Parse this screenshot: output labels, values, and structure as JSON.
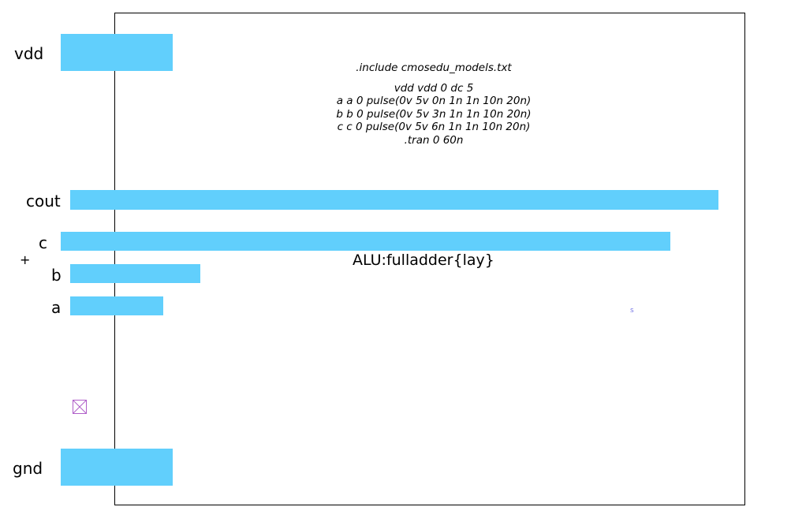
{
  "layout": {
    "cell_name": "ALU:fulladder{lay}",
    "spice": {
      "include": ".include cmosedu_models.txt",
      "lines": [
        "vdd vdd 0 dc 5",
        "a a 0 pulse(0v 5v 0n 1n 1n 10n 20n)",
        "b b 0 pulse(0v 5v 3n 1n 1n 10n 20n)",
        "c c 0 pulse(0v 5v 6n 1n 1n 10n 20n)",
        ".tran 0 60n"
      ]
    },
    "ports": {
      "vdd": "vdd",
      "cout": "cout",
      "c": "c",
      "b": "b",
      "a": "a",
      "gnd": "gnd"
    },
    "marker_text": "s",
    "origin_symbol": "+",
    "icons": {
      "instance": "crossed-box-icon",
      "origin": "plus-icon"
    },
    "colors": {
      "metal": "#61cffc",
      "frame": "#000000",
      "instance": "#b05fc9",
      "marker": "#7a7ae6"
    }
  }
}
